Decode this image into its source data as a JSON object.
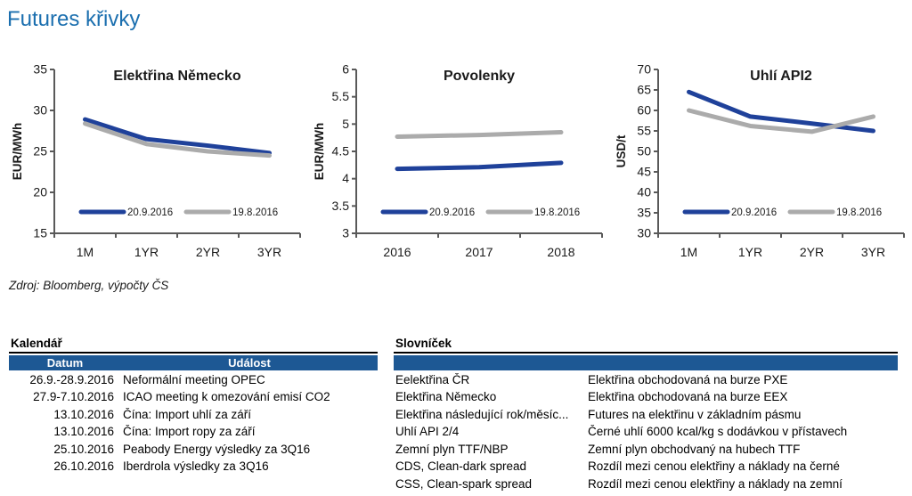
{
  "title": "Futures křivky",
  "source": "Zdroj: Bloomberg, výpočty ČS",
  "colors": {
    "title_blue": "#1b6faf",
    "header_bar_blue": "#1d5894",
    "series_blue": "#1f419a",
    "series_gray": "#ababab",
    "axis_gray": "#595959",
    "text_black": "#1a1a1a"
  },
  "chart_data": [
    {
      "type": "line",
      "title": "Elektřina Německo",
      "ylabel": "EUR/MWh",
      "categories": [
        "1M",
        "1YR",
        "2YR",
        "3YR"
      ],
      "ylim": [
        15,
        35
      ],
      "yticks": [
        15,
        20,
        25,
        30,
        35
      ],
      "grid": false,
      "legend_position": "bottom-inside",
      "series": [
        {
          "name": "20.9.2016",
          "color": "#1f419a",
          "values": [
            28.9,
            26.5,
            25.7,
            24.8
          ]
        },
        {
          "name": "19.8.2016",
          "color": "#ababab",
          "values": [
            28.4,
            25.9,
            25.0,
            24.5
          ]
        }
      ]
    },
    {
      "type": "line",
      "title": "Povolenky",
      "ylabel": "EUR/MWh",
      "categories": [
        "2016",
        "2017",
        "2018"
      ],
      "ylim": [
        3,
        6
      ],
      "yticks": [
        3,
        3.5,
        4,
        4.5,
        5,
        5.5,
        6
      ],
      "grid": false,
      "legend_position": "bottom-inside",
      "series": [
        {
          "name": "20.9.2016",
          "color": "#1f419a",
          "values": [
            4.18,
            4.21,
            4.29
          ]
        },
        {
          "name": "19.8.2016",
          "color": "#ababab",
          "values": [
            4.77,
            4.8,
            4.85
          ]
        }
      ]
    },
    {
      "type": "line",
      "title": "Uhlí API2",
      "ylabel": "USD/t",
      "categories": [
        "1M",
        "1YR",
        "2YR",
        "3YR"
      ],
      "ylim": [
        30,
        70
      ],
      "yticks": [
        30,
        35,
        40,
        45,
        50,
        55,
        60,
        65,
        70
      ],
      "grid": false,
      "legend_position": "bottom-inside",
      "series": [
        {
          "name": "20.9.2016",
          "color": "#1f419a",
          "values": [
            64.5,
            58.5,
            56.8,
            55.0
          ]
        },
        {
          "name": "19.8.2016",
          "color": "#ababab",
          "values": [
            60.0,
            56.2,
            54.8,
            58.5
          ]
        }
      ]
    }
  ],
  "calendar": {
    "heading": "Kalendář",
    "columns": [
      "Datum",
      "Událost"
    ],
    "rows": [
      {
        "date": "26.9.-28.9.2016",
        "event": "Neformální meeting OPEC"
      },
      {
        "date": "27.9-7.10.2016",
        "event": "ICAO meeting k omezování emisí CO2"
      },
      {
        "date": "13.10.2016",
        "event": "Čína: Import uhlí za září"
      },
      {
        "date": "13.10.2016",
        "event": "Čína: Import ropy za září"
      },
      {
        "date": "25.10.2016",
        "event": "Peabody Energy výsledky za 3Q16"
      },
      {
        "date": "26.10.2016",
        "event": "Iberdrola výsledky za 3Q16"
      }
    ]
  },
  "glossary": {
    "heading": "Slovníček",
    "rows": [
      {
        "term": "Eelektřina ČR",
        "definition": "Elektřina obchodovaná na burze PXE"
      },
      {
        "term": "Elektřina Německo",
        "definition": "Elektřina obchodovaná na burze EEX"
      },
      {
        "term": "Elektřina následující rok/měsíc...",
        "definition": "Futures na elektřinu v základním pásmu"
      },
      {
        "term": "Uhlí API 2/4",
        "definition": "Černé uhlí 6000 kcal/kg s dodávkou v přístavech"
      },
      {
        "term": "Zemní plyn TTF/NBP",
        "definition": "Zemní plyn obchodvaný na hubech TTF"
      },
      {
        "term": "CDS, Clean-dark spread",
        "definition": "Rozdíl mezi cenou elektřiny a náklady na černé"
      },
      {
        "term": "CSS, Clean-spark spread",
        "definition": "Rozdíl mezi cenou elektřiny a náklady na zemní"
      }
    ]
  }
}
